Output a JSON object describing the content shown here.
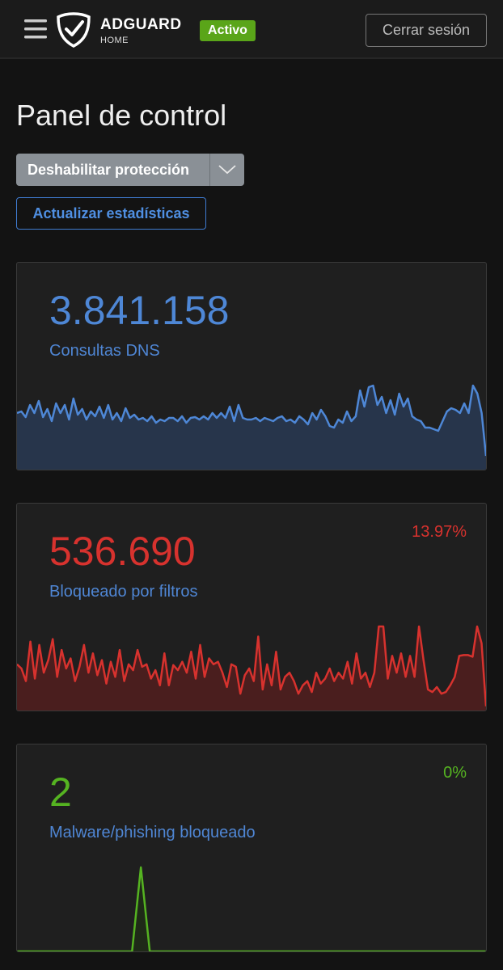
{
  "header": {
    "brand": "ADGUARD",
    "brand_sub": "HOME",
    "status": "Activo",
    "logout": "Cerrar sesión"
  },
  "title": "Panel de control",
  "buttons": {
    "disable": "Deshabilitar protección",
    "refresh": "Actualizar estadísticas"
  },
  "cards": [
    {
      "value": "3.841.158",
      "label": "Consultas DNS",
      "color": "#4e87d6",
      "fill": "#27354b",
      "sparkline": [
        70,
        72,
        65,
        80,
        70,
        85,
        65,
        75,
        60,
        82,
        70,
        80,
        62,
        88,
        68,
        75,
        62,
        72,
        66,
        78,
        64,
        80,
        62,
        70,
        60,
        76,
        64,
        68,
        62,
        64,
        60,
        66,
        58,
        62,
        60,
        64,
        64,
        60,
        66,
        58,
        64,
        65,
        62,
        66,
        62,
        70,
        64,
        70,
        64,
        78,
        60,
        80,
        64,
        62,
        62,
        64,
        60,
        64,
        62,
        60,
        64,
        66,
        60,
        62,
        58,
        66,
        62,
        56,
        70,
        62,
        74,
        66,
        54,
        52,
        62,
        58,
        72,
        60,
        66,
        98,
        78,
        102,
        104,
        80,
        90,
        70,
        86,
        68,
        94,
        78,
        88,
        66,
        62,
        60,
        52,
        52,
        50,
        48,
        60,
        72,
        76,
        74,
        70,
        82,
        70,
        104,
        94,
        70,
        17
      ]
    },
    {
      "value": "536.690",
      "percent": "13.97%",
      "label": "Bloqueado por filtros",
      "color": "#d7322e",
      "fill": "#4a1e1e",
      "sparkline": [
        55,
        50,
        35,
        82,
        38,
        78,
        45,
        60,
        85,
        40,
        72,
        50,
        62,
        35,
        52,
        78,
        45,
        68,
        42,
        60,
        32,
        58,
        40,
        72,
        35,
        55,
        48,
        72,
        52,
        55,
        38,
        48,
        30,
        68,
        30,
        54,
        48,
        58,
        45,
        70,
        38,
        78,
        40,
        62,
        55,
        58,
        45,
        28,
        55,
        52,
        20,
        42,
        50,
        35,
        88,
        25,
        55,
        30,
        70,
        25,
        40,
        45,
        35,
        20,
        30,
        35,
        22,
        45,
        32,
        38,
        50,
        35,
        45,
        38,
        58,
        32,
        68,
        38,
        45,
        28,
        45,
        100,
        100,
        38,
        65,
        45,
        68,
        40,
        65,
        40,
        100,
        60,
        25,
        22,
        28,
        20,
        22,
        30,
        40,
        65,
        66,
        66,
        64,
        100,
        80,
        5
      ]
    },
    {
      "value": "2",
      "percent": "0%",
      "label": "Malware/phishing bloqueado",
      "color": "#55b321",
      "fill": "#1f2a18",
      "sparkline": [
        0,
        0,
        0,
        0,
        0,
        0,
        0,
        0,
        0,
        0,
        0,
        0,
        0,
        0,
        2,
        0,
        0,
        0,
        0,
        0,
        0,
        0,
        0,
        0,
        0,
        0,
        0,
        0,
        0,
        0,
        0,
        0,
        0,
        0,
        0,
        0,
        0,
        0,
        0,
        0,
        0,
        0,
        0,
        0,
        0,
        0,
        0,
        0,
        0,
        0,
        0,
        0,
        0,
        0
      ]
    }
  ]
}
